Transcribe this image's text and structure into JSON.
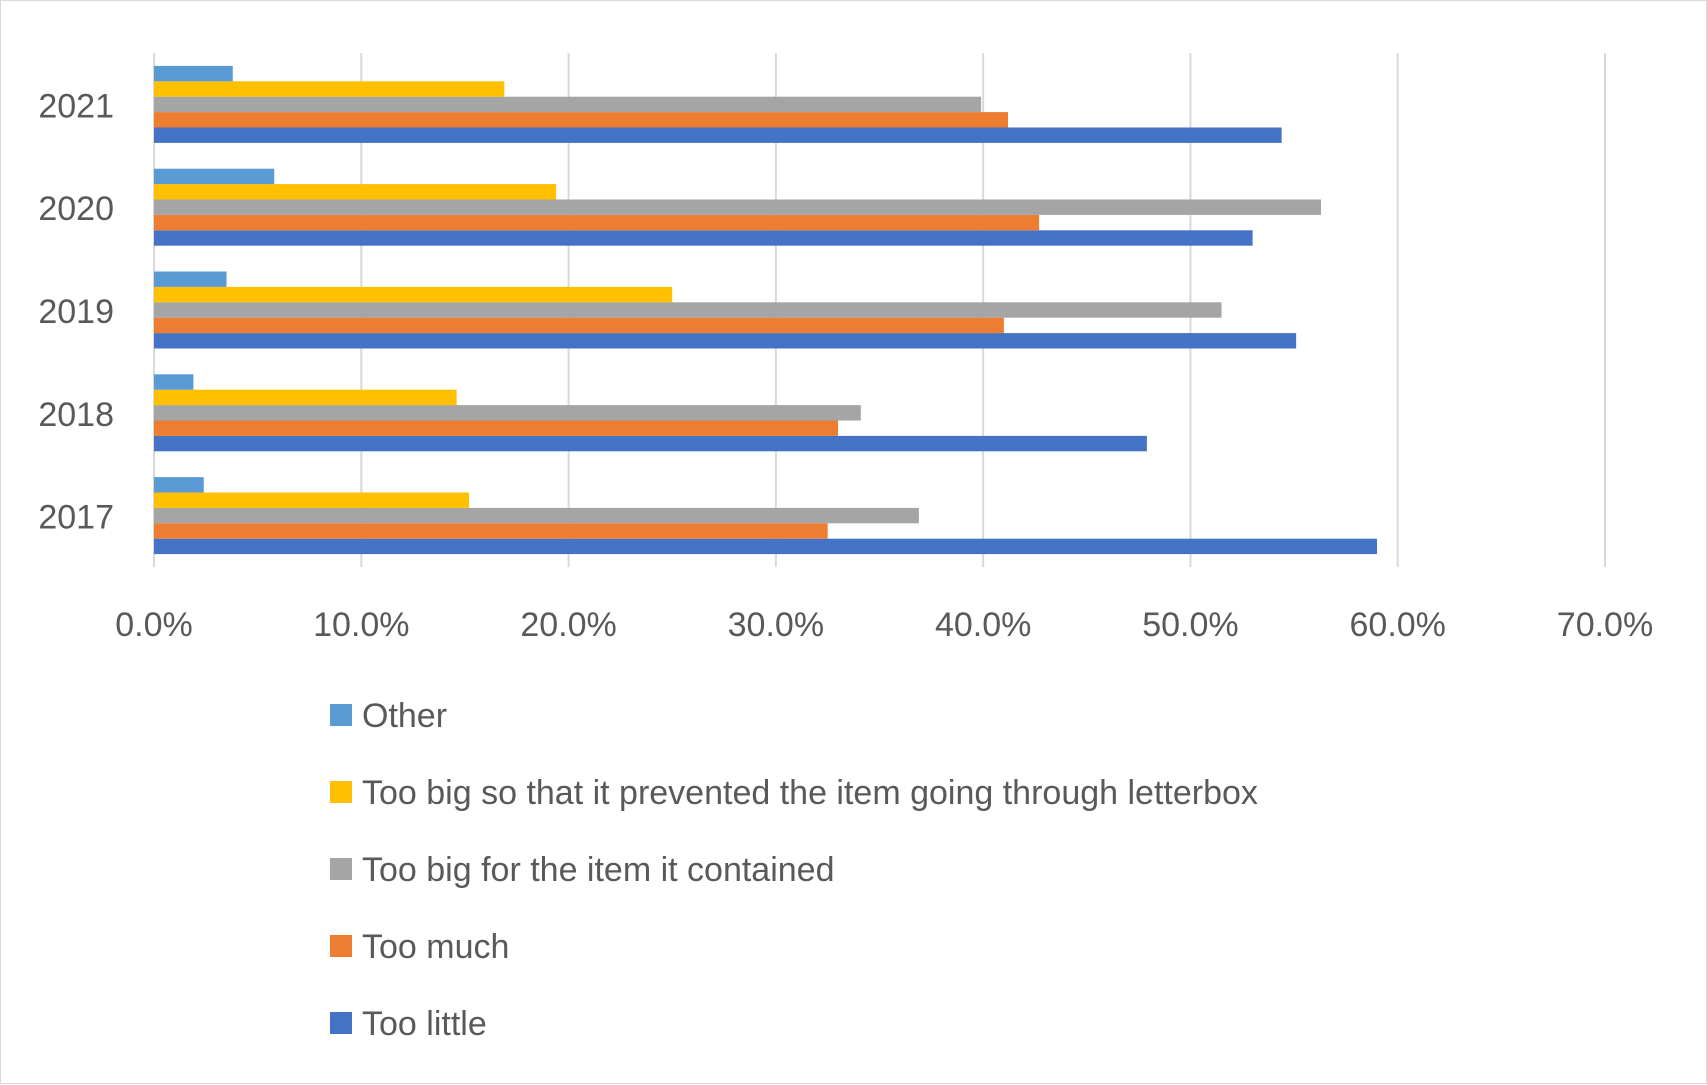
{
  "chart_data": {
    "type": "bar",
    "orientation": "horizontal",
    "categories": [
      "2017",
      "2018",
      "2019",
      "2020",
      "2021"
    ],
    "series": [
      {
        "name": "Too little",
        "color": "#4472C4",
        "values": [
          59.0,
          47.9,
          55.1,
          53.0,
          54.4
        ]
      },
      {
        "name": "Too much",
        "color": "#ED7D31",
        "values": [
          32.5,
          33.0,
          41.0,
          42.7,
          41.2
        ]
      },
      {
        "name": "Too big for the item it contained",
        "color": "#A5A5A5",
        "values": [
          36.9,
          34.1,
          51.5,
          56.3,
          39.9
        ]
      },
      {
        "name": "Too big so that it prevented the item going through letterbox",
        "color": "#FFC000",
        "values": [
          15.2,
          14.6,
          25.0,
          19.4,
          16.9
        ]
      },
      {
        "name": "Other",
        "color": "#5B9BD5",
        "values": [
          2.4,
          1.9,
          3.5,
          5.8,
          3.8
        ]
      }
    ],
    "x_ticks": [
      "0.0%",
      "10.0%",
      "20.0%",
      "30.0%",
      "40.0%",
      "50.0%",
      "60.0%",
      "70.0%"
    ],
    "xlim": [
      0,
      70
    ],
    "title": "",
    "xlabel": "",
    "ylabel": "",
    "grid": "vertical",
    "legend": "bottom",
    "legend_order": [
      "Other",
      "Too big so that it prevented the item going through letterbox",
      "Too big for the item it contained",
      "Too much",
      "Too little"
    ]
  }
}
